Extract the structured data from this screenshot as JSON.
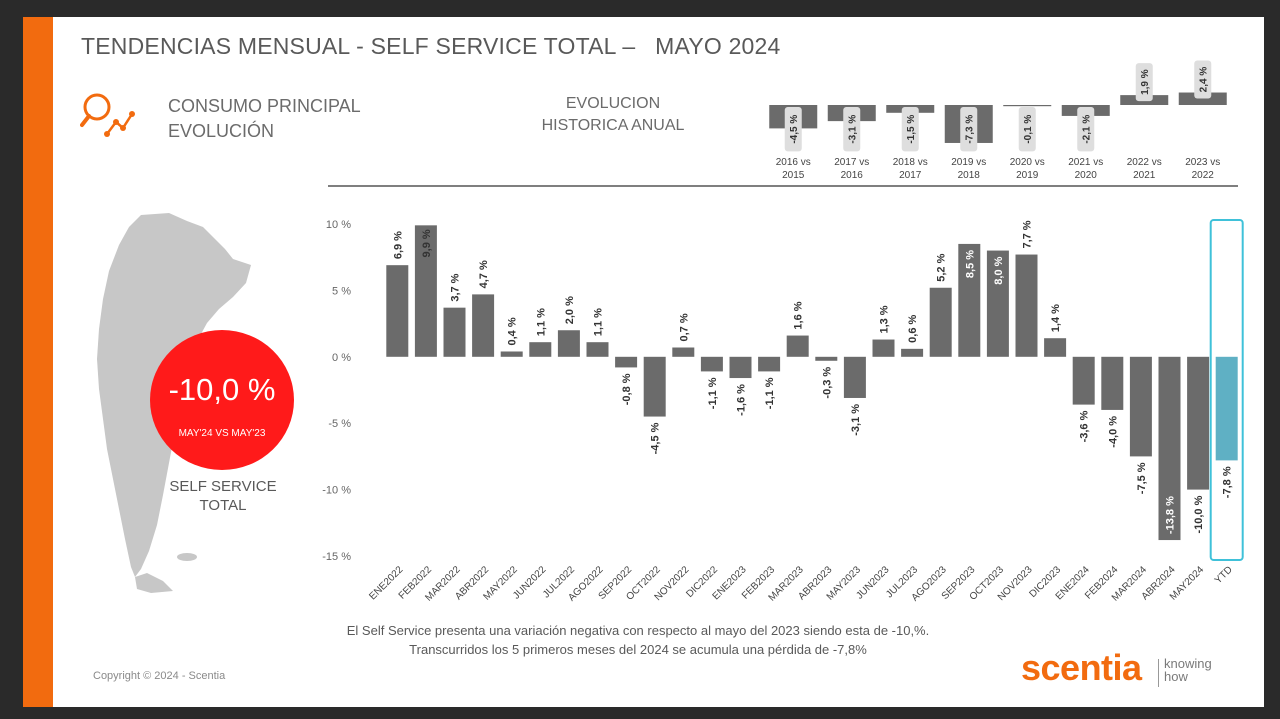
{
  "title": "TENDENCIAS MENSUAL - SELF SERVICE TOTAL –   MAYO 2024",
  "subtitle": {
    "line1": "CONSUMO PRINCIPAL",
    "line2": "EVOLUCIÓN"
  },
  "historic_label": {
    "line1": "EVOLUCION",
    "line2": "HISTORICA ANUAL"
  },
  "highlight": {
    "value": "-10,0 %",
    "caption": "MAY'24 VS MAY'23"
  },
  "region_label": {
    "line1": "SELF SERVICE",
    "line2": "TOTAL"
  },
  "note": {
    "line1": "El Self Service presenta una variación negativa con respecto al mayo del 2023 siendo esta de -10,%.",
    "line2": "Transcurridos los 5 primeros meses del 2024 se acumula una pérdida de -7,8%"
  },
  "copyright": "Copyright © 2024 - Scentia",
  "logo": {
    "name": "scentia",
    "tagline_1": "knowing",
    "tagline_2": "how"
  },
  "colors": {
    "bar": "#6b6b6b",
    "ytd": "#5fb0c4",
    "accent": "#f26b0f",
    "highlight": "#ff1a1a",
    "ytd_frame": "#3fc1d9"
  },
  "icons": {
    "consumption": "magnifier-trend-icon",
    "map": "argentina-map"
  },
  "chart_data": [
    {
      "type": "bar",
      "name": "annual-evolution",
      "categories": [
        [
          "2016 vs",
          "2015"
        ],
        [
          "2017 vs",
          "2016"
        ],
        [
          "2018 vs",
          "2017"
        ],
        [
          "2019 vs",
          "2018"
        ],
        [
          "2020 vs",
          "2019"
        ],
        [
          "2021 vs",
          "2020"
        ],
        [
          "2022 vs",
          "2021"
        ],
        [
          "2023 vs",
          "2022"
        ]
      ],
      "values": [
        -4.5,
        -3.1,
        -1.5,
        -7.3,
        -0.1,
        -2.1,
        1.9,
        2.4
      ],
      "labels": [
        "-4,5 %",
        "-3,1 %",
        "-1,5 %",
        "-7,3 %",
        "-0,1 %",
        "-2,1 %",
        "1,9 %",
        "2,4 %"
      ]
    },
    {
      "type": "bar",
      "name": "monthly-evolution",
      "ylim": [
        -15,
        10
      ],
      "yticks": [
        10,
        5,
        0,
        -5,
        -10,
        -15
      ],
      "ytick_labels": [
        "10 %",
        "5 %",
        "0 %",
        "-5 %",
        "-10 %",
        "-15 %"
      ],
      "categories": [
        "ENE2022",
        "FEB2022",
        "MAR2022",
        "ABR2022",
        "MAY2022",
        "JUN2022",
        "JUL2022",
        "AGO2022",
        "SEP2022",
        "OCT2022",
        "NOV2022",
        "DIC2022",
        "ENE2023",
        "FEB2023",
        "MAR2023",
        "ABR2023",
        "MAY2023",
        "JUN2023",
        "JUL2023",
        "AGO2023",
        "SEP2023",
        "OCT2023",
        "NOV2023",
        "DIC2023",
        "ENE2024",
        "FEB2024",
        "MAR2024",
        "ABR2024",
        "MAY2024",
        "YTD"
      ],
      "values": [
        6.9,
        9.9,
        3.7,
        4.7,
        0.4,
        1.1,
        2.0,
        1.1,
        -0.8,
        -4.5,
        0.7,
        -1.1,
        -1.6,
        -1.1,
        1.6,
        -0.3,
        -3.1,
        1.3,
        0.6,
        5.2,
        8.5,
        8.0,
        7.7,
        1.4,
        -3.6,
        -4.0,
        -7.5,
        -13.8,
        -10.0,
        -7.8
      ],
      "labels": [
        "6,9 %",
        "9,9 %",
        "3,7 %",
        "4,7 %",
        "0,4 %",
        "1,1 %",
        "2,0 %",
        "1,1 %",
        "-0,8 %",
        "-4,5 %",
        "0,7 %",
        "-1,1 %",
        "-1,6 %",
        "-1,1 %",
        "1,6 %",
        "-0,3 %",
        "-3,1 %",
        "1,3 %",
        "0,6 %",
        "5,2 %",
        "8,5 %",
        "8,0 %",
        "7,7 %",
        "1,4 %",
        "-3,6 %",
        "-4,0 %",
        "-7,5 %",
        "-13,8 %",
        "-10,0 %",
        "-7,8 %"
      ],
      "highlight_category": "YTD"
    }
  ]
}
